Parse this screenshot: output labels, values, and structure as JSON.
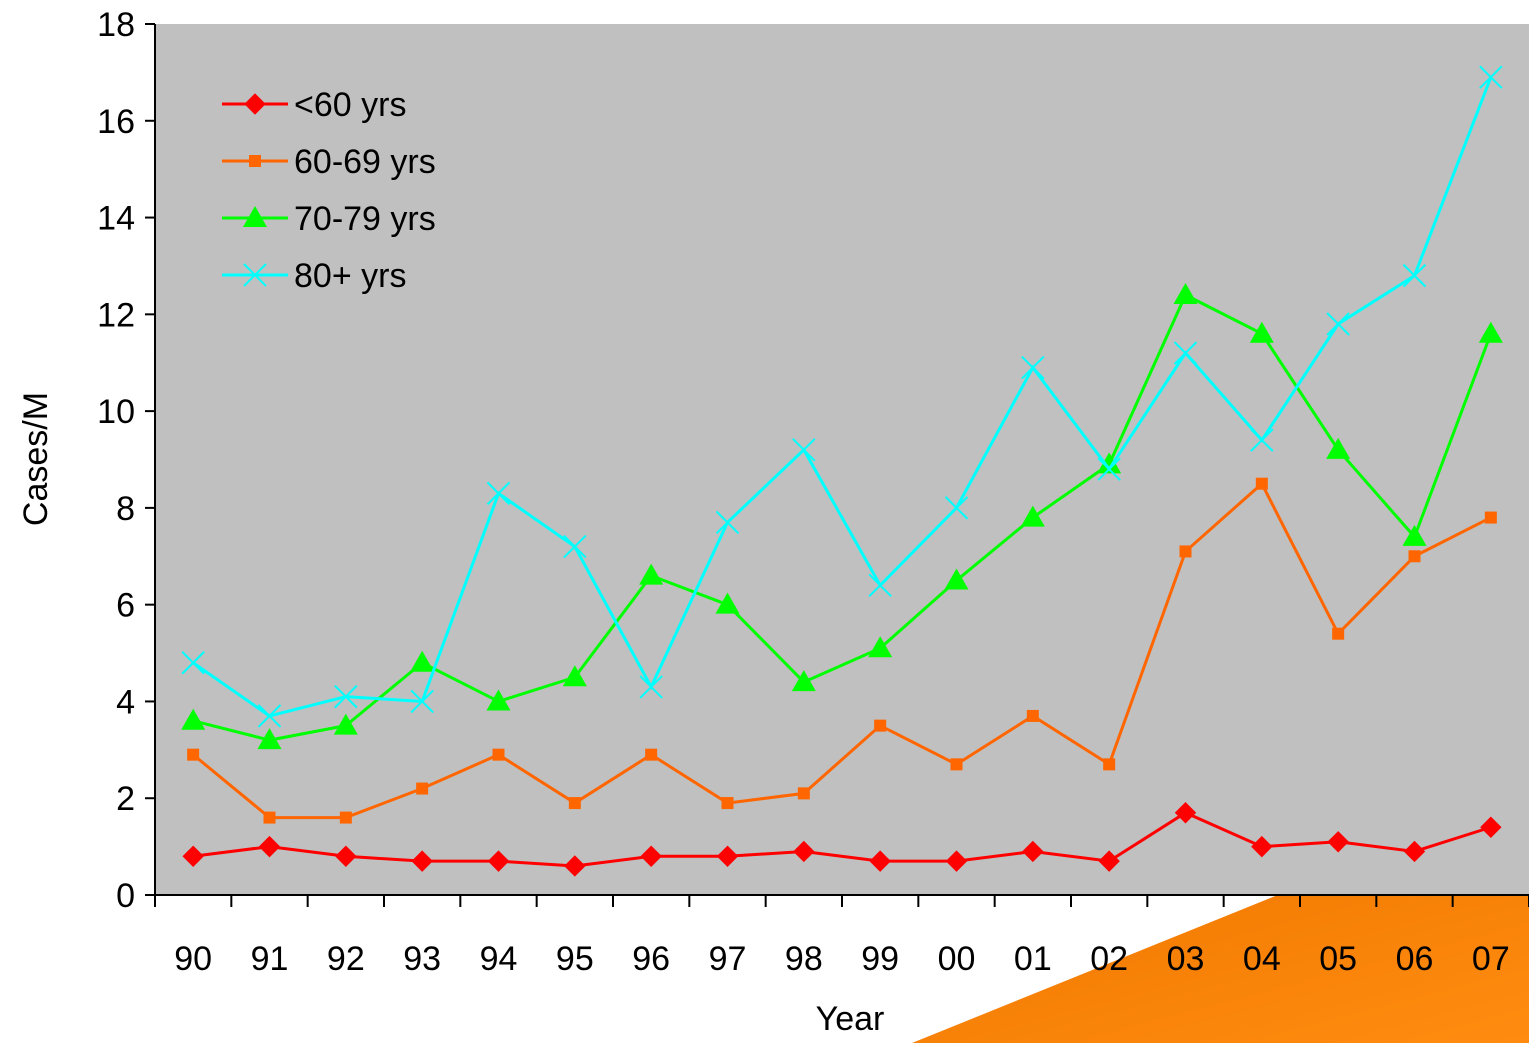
{
  "chart_data": {
    "type": "line",
    "categories": [
      "90",
      "91",
      "92",
      "93",
      "94",
      "95",
      "96",
      "97",
      "98",
      "99",
      "00",
      "01",
      "02",
      "03",
      "04",
      "05",
      "06",
      "07"
    ],
    "xlabel": "Year",
    "ylabel": "Cases/M",
    "ylim": [
      0,
      18
    ],
    "yticks": [
      0,
      2,
      4,
      6,
      8,
      10,
      12,
      14,
      16,
      18
    ],
    "grid": false,
    "plot_background": "#c0c0c0",
    "legend_position": "top-left",
    "series": [
      {
        "name": "<60 yrs",
        "color": "#ff0000",
        "marker": "diamond",
        "values": [
          0.8,
          1.0,
          0.8,
          0.7,
          0.7,
          0.6,
          0.8,
          0.8,
          0.9,
          0.7,
          0.7,
          0.9,
          0.7,
          1.7,
          1.0,
          1.1,
          0.9,
          1.4
        ]
      },
      {
        "name": "60-69 yrs",
        "color": "#ff6600",
        "marker": "square",
        "values": [
          2.9,
          1.6,
          1.6,
          2.2,
          2.9,
          1.9,
          2.9,
          1.9,
          2.1,
          3.5,
          2.7,
          3.7,
          2.7,
          7.1,
          8.5,
          5.4,
          7.0,
          7.8
        ]
      },
      {
        "name": "70-79 yrs",
        "color": "#00ff00",
        "marker": "triangle",
        "values": [
          3.6,
          3.2,
          3.5,
          4.8,
          4.0,
          4.5,
          6.6,
          6.0,
          4.4,
          5.1,
          6.5,
          7.8,
          8.9,
          12.4,
          11.6,
          9.2,
          7.4,
          11.6
        ]
      },
      {
        "name": "80+ yrs",
        "color": "#00ffff",
        "marker": "x",
        "values": [
          4.8,
          3.7,
          4.1,
          4.0,
          8.3,
          7.2,
          4.3,
          7.7,
          9.2,
          6.4,
          8.0,
          10.9,
          8.8,
          11.2,
          9.4,
          11.8,
          12.8,
          16.9
        ]
      }
    ]
  }
}
